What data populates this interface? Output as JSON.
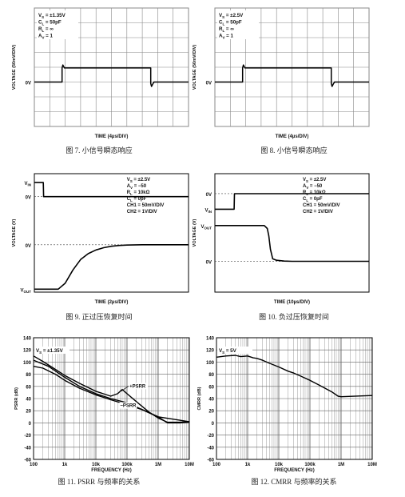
{
  "captions": {
    "fig7": "图 7. 小信号瞬态响应",
    "fig8": "图 8. 小信号瞬态响应",
    "fig9": "图 9. 正过压恢复时间",
    "fig10": "图 10. 负过压恢复时间",
    "fig11": "图 11. PSRR 与频率的关系",
    "fig12": "图 12. CMRR 与频率的关系"
  },
  "colors": {
    "grid": "#888888",
    "trace": "#000000",
    "text": "#111111"
  },
  "chart_data": [
    {
      "id": "fig7",
      "type": "line",
      "xlabel": "TIME (4µs/DIV)",
      "ylabel": "VOLTAGE (50mV/DIV)",
      "y_marker": "0V",
      "conditions": [
        "VS = ±1.35V",
        "CL = 50pF",
        "RL = ∞",
        "AV = 1"
      ],
      "grid": true,
      "divisions": {
        "x": 10,
        "y": 8
      },
      "series": [
        {
          "x": [
            0,
            1.8,
            1.8,
            1.85,
            1.95,
            1.95,
            7.55,
            7.55,
            7.6,
            7.7,
            7.75,
            7.75,
            10
          ],
          "y": [
            0,
            0,
            0.95,
            1.15,
            0.95,
            0.95,
            0.95,
            -0.1,
            -0.3,
            -0.1,
            -0.02,
            0,
            0
          ]
        }
      ]
    },
    {
      "id": "fig8",
      "type": "line",
      "xlabel": "TIME (4µs/DIV)",
      "ylabel": "VOLTAGE (50mV/DIV)",
      "y_marker": "0V",
      "conditions": [
        "VS = ±2.5V",
        "CL = 50pF",
        "RL = ∞",
        "AV = 1"
      ],
      "grid": true,
      "divisions": {
        "x": 10,
        "y": 8
      },
      "series": [
        {
          "x": [
            0,
            1.8,
            1.8,
            1.85,
            1.95,
            1.95,
            7.55,
            7.55,
            7.6,
            7.7,
            7.75,
            7.75,
            10
          ],
          "y": [
            0,
            0,
            0.95,
            1.15,
            0.95,
            0.95,
            0.95,
            -0.1,
            -0.3,
            -0.1,
            -0.02,
            0,
            0
          ]
        }
      ]
    },
    {
      "id": "fig9",
      "type": "line",
      "xlabel": "TIME (2µs/DIV)",
      "ylabel": "VOLTAGE (V)",
      "trace_labels": [
        "VIN",
        "0V",
        "0V",
        "VOUT"
      ],
      "conditions": [
        "VS = ±2.5V",
        "AV = −50",
        "RL = 10kΩ",
        "CL = 0pF",
        "CH1 = 50mV/DIV",
        "CH2 = 1V/DIV"
      ],
      "grid": false,
      "series": [
        {
          "x": [
            0,
            0.58,
            0.6,
            10
          ],
          "y": [
            7.4,
            7.4,
            6.45,
            6.45
          ]
        },
        {
          "x": [
            0,
            1.55,
            2.0,
            2.5,
            3.0,
            3.5,
            4.0,
            4.5,
            5.0,
            5.5,
            6.0,
            7.0,
            10
          ],
          "y": [
            0.2,
            0.2,
            0.6,
            1.5,
            2.2,
            2.6,
            2.85,
            3.0,
            3.1,
            3.15,
            3.18,
            3.2,
            3.2
          ]
        }
      ]
    },
    {
      "id": "fig10",
      "type": "line",
      "xlabel": "TIME (10µs/DIV)",
      "ylabel": "VOLTAGE (V)",
      "trace_labels": [
        "0V",
        "VIN",
        "VOUT",
        "0V"
      ],
      "conditions": [
        "VS = ±2.5V",
        "AV = −50",
        "RL = 10kΩ",
        "CL = 0pF",
        "CH1 = 50mV/DIV",
        "CH2 = 1V/DIV"
      ],
      "grid": false,
      "series": [
        {
          "x": [
            0,
            1.25,
            1.27,
            10
          ],
          "y": [
            5.6,
            5.6,
            6.65,
            6.65
          ]
        },
        {
          "x": [
            0,
            3.2,
            3.4,
            3.5,
            3.6,
            3.75,
            4.0,
            4.5,
            5.0,
            10
          ],
          "y": [
            4.5,
            4.5,
            4.3,
            3.8,
            2.9,
            2.25,
            2.15,
            2.1,
            2.08,
            2.08
          ]
        }
      ]
    },
    {
      "id": "fig11",
      "type": "line",
      "xlabel": "FREQUENCY (Hz)",
      "ylabel": "PSRR (dB)",
      "annotation": "VS = ±1.35V",
      "x_scale": "log",
      "xlim": [
        100,
        10000000
      ],
      "xticks": [
        "100",
        "1k",
        "10k",
        "100k",
        "1M",
        "10M"
      ],
      "ylim": [
        -60,
        140
      ],
      "yticks": [
        140,
        120,
        100,
        80,
        60,
        40,
        20,
        0,
        -20,
        -40,
        -60
      ],
      "grid": true,
      "series": [
        {
          "name": "+PSRR",
          "x": [
            100,
            200,
            500,
            1000,
            3000,
            10000,
            30000,
            50000,
            70000,
            100000,
            200000,
            500000,
            1000000,
            2000000,
            5000000,
            10000000
          ],
          "y": [
            110,
            101,
            88,
            78,
            65,
            52,
            44,
            48,
            55,
            48,
            35,
            18,
            8,
            1,
            1,
            2
          ]
        },
        {
          "name": "−PSRR",
          "x": [
            100,
            200,
            500,
            1000,
            3000,
            10000,
            30000,
            100000,
            300000,
            1000000,
            2000000,
            5000000,
            10000000
          ],
          "y": [
            93,
            90,
            80,
            70,
            57,
            46,
            38,
            30,
            22,
            10,
            0,
            0,
            1
          ]
        },
        {
          "x": [
            100,
            300,
            1000,
            3000,
            10000,
            30000,
            100000,
            1000000,
            10000000
          ],
          "y": [
            103,
            93,
            75,
            60,
            48,
            40,
            33,
            10,
            2
          ]
        }
      ]
    },
    {
      "id": "fig12",
      "type": "line",
      "xlabel": "FREQUENCY (Hz)",
      "ylabel": "CMRR (dB)",
      "annotation": "VS = 5V",
      "x_scale": "log",
      "xlim": [
        100,
        10000000
      ],
      "xticks": [
        "100",
        "1k",
        "10k",
        "100k",
        "1M",
        "10M"
      ],
      "ylim": [
        -60,
        140
      ],
      "yticks": [
        140,
        120,
        100,
        80,
        60,
        40,
        20,
        0,
        -20,
        -40,
        -60
      ],
      "grid": true,
      "series": [
        {
          "x": [
            100,
            200,
            400,
            600,
            1000,
            1500,
            2000,
            3000,
            5000,
            10000,
            20000,
            30000,
            50000,
            100000,
            200000,
            500000,
            800000,
            1000000,
            10000000
          ],
          "y": [
            108,
            110,
            111,
            109,
            110,
            107,
            106,
            103,
            98,
            92,
            85,
            82,
            77,
            70,
            62,
            51,
            44,
            43,
            45
          ]
        }
      ]
    }
  ]
}
